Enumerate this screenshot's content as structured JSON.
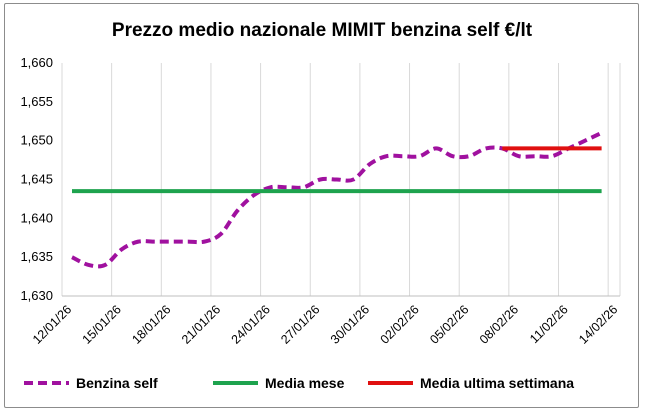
{
  "chart_data": {
    "type": "line",
    "title": "Prezzo medio nazionale MIMIT benzina self €/lt",
    "xlabel": "",
    "ylabel": "",
    "ylim": [
      1.63,
      1.66
    ],
    "y_ticks": [
      "1,630",
      "1,635",
      "1,640",
      "1,645",
      "1,650",
      "1,655",
      "1,660"
    ],
    "y_tick_values": [
      1.63,
      1.635,
      1.64,
      1.645,
      1.65,
      1.655,
      1.66
    ],
    "x_ticks": [
      "12/01/26",
      "15/01/26",
      "18/01/26",
      "21/01/26",
      "24/01/26",
      "27/01/26",
      "30/01/26",
      "02/02/26",
      "05/02/26",
      "08/02/26",
      "11/02/26",
      "14/02/26"
    ],
    "grid": "vertical",
    "legend_position": "bottom",
    "series": [
      {
        "name": "Benzina self",
        "style": "dashed",
        "color": "#a0119f",
        "x": [
          "12/01/26",
          "13/01/26",
          "14/01/26",
          "15/01/26",
          "16/01/26",
          "17/01/26",
          "18/01/26",
          "19/01/26",
          "20/01/26",
          "21/01/26",
          "22/01/26",
          "23/01/26",
          "24/01/26",
          "25/01/26",
          "26/01/26",
          "27/01/26",
          "28/01/26",
          "29/01/26",
          "30/01/26",
          "31/01/26",
          "01/02/26",
          "02/02/26",
          "03/02/26",
          "04/02/26",
          "05/02/26",
          "06/02/26",
          "07/02/26",
          "08/02/26",
          "09/02/26",
          "10/02/26",
          "11/02/26",
          "12/02/26",
          "13/02/26"
        ],
        "values": [
          1.635,
          1.634,
          1.634,
          1.636,
          1.637,
          1.637,
          1.637,
          1.637,
          1.637,
          1.638,
          1.641,
          1.643,
          1.644,
          1.644,
          1.644,
          1.645,
          1.645,
          1.645,
          1.647,
          1.648,
          1.648,
          1.648,
          1.649,
          1.648,
          1.648,
          1.649,
          1.649,
          1.648,
          1.648,
          1.648,
          1.649,
          1.65,
          1.651
        ]
      },
      {
        "name": "Media mese",
        "style": "solid",
        "color": "#1ea34e",
        "x": [
          "12/01/26",
          "13/02/26"
        ],
        "values": [
          1.6435,
          1.6435
        ]
      },
      {
        "name": "Media ultima settimana",
        "style": "solid",
        "color": "#e01010",
        "x": [
          "07/02/26",
          "13/02/26"
        ],
        "values": [
          1.649,
          1.649
        ]
      }
    ]
  }
}
